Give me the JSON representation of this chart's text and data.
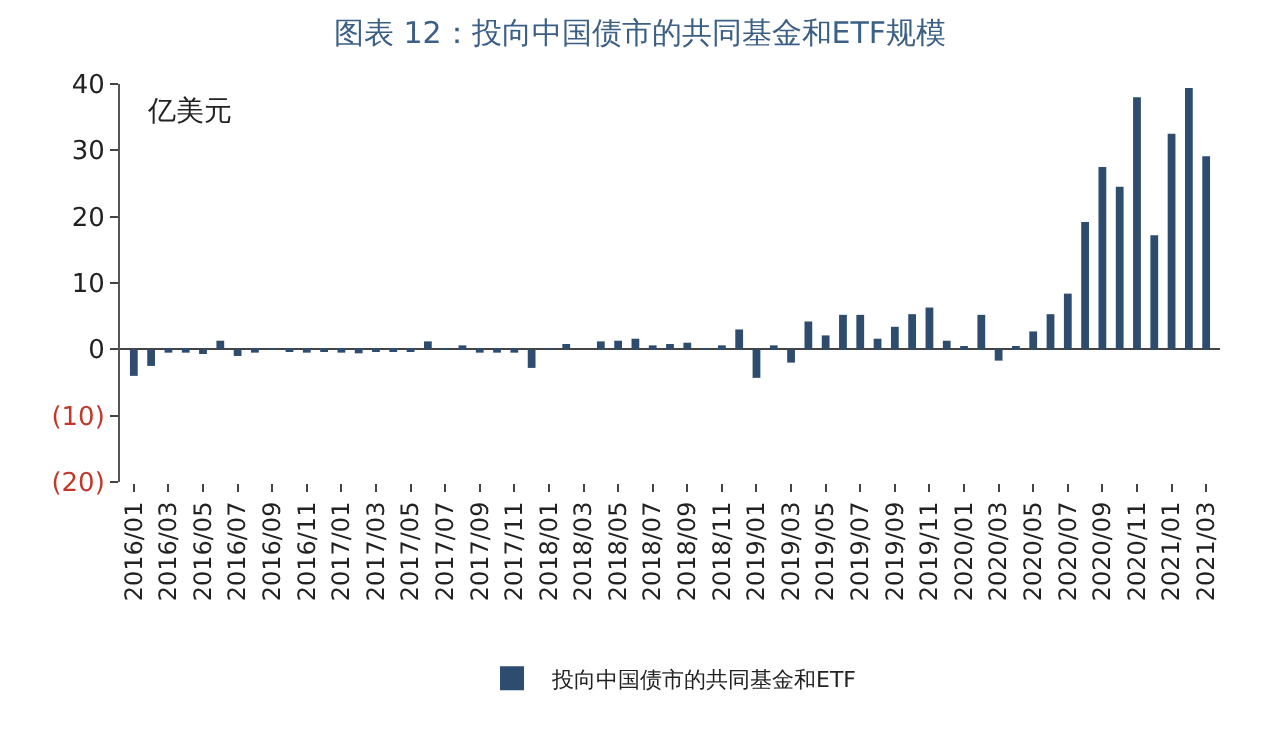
{
  "chart_data": {
    "type": "bar",
    "title": "图表 12：投向中国债市的共同基金和ETF规模",
    "annotations": [
      "亿美元"
    ],
    "categories": [
      "2016/01",
      null,
      "2016/03",
      null,
      "2016/05",
      null,
      "2016/07",
      null,
      "2016/09",
      null,
      "2016/11",
      null,
      "2017/01",
      null,
      "2017/03",
      null,
      "2017/05",
      null,
      "2017/07",
      null,
      "2017/09",
      null,
      "2017/11",
      null,
      "2018/01",
      null,
      "2018/03",
      null,
      "2018/05",
      null,
      "2018/07",
      null,
      "2018/09",
      null,
      "2018/11",
      null,
      "2019/01",
      null,
      "2019/03",
      null,
      "2019/05",
      null,
      "2019/07",
      null,
      "2019/09",
      null,
      "2019/11",
      null,
      "2020/01",
      null,
      "2020/03",
      null,
      "2020/05",
      null,
      "2020/07",
      null,
      "2020/09",
      null,
      "2020/11",
      null,
      "2021/01",
      null,
      "2021/03"
    ],
    "series": [
      {
        "name": "投向中国债市的共同基金和ETF",
        "color": "#2e4d6e",
        "values": [
          -4,
          -2.5,
          -0.5,
          -0.5,
          -0.7,
          1.3,
          -1,
          -0.5,
          0.2,
          -0.3,
          -0.5,
          -0.4,
          -0.5,
          -0.6,
          -0.4,
          -0.3,
          -0.2,
          1.2,
          -0.1,
          0.6,
          -0.5,
          -0.5,
          -0.5,
          -2.8,
          0.2,
          0.8,
          0,
          1.2,
          1.3,
          1.6,
          0.6,
          0.8,
          1,
          0.1,
          0.6,
          3,
          -4.3,
          0.6,
          -2,
          4.2,
          2.1,
          5.2,
          5.2,
          1.6,
          3.4,
          5.3,
          6.3,
          1.3,
          0.5,
          5.2,
          -1.7,
          0.4,
          2.7,
          5.3,
          8.4,
          19.2,
          27.5,
          24.5,
          38,
          17.2,
          32.5,
          39.4,
          29.1
        ]
      }
    ],
    "ylim": [
      -20,
      40
    ],
    "yticks": [
      {
        "value": -20,
        "label": "(20)"
      },
      {
        "value": -10,
        "label": "(10)"
      },
      0,
      10,
      20,
      30,
      40
    ],
    "legend": "bottom"
  }
}
